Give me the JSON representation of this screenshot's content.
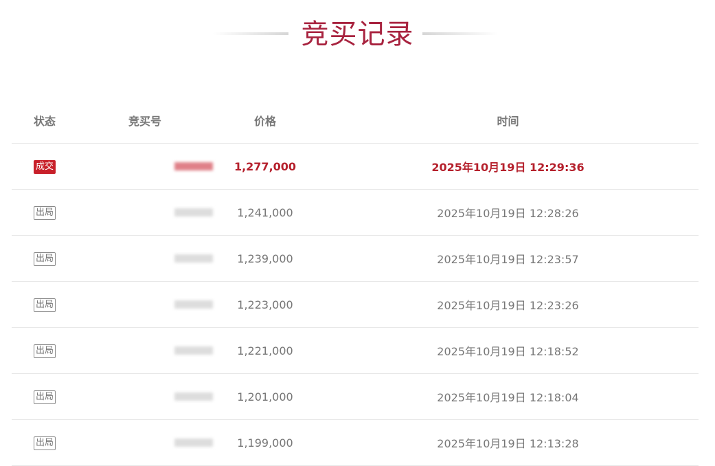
{
  "title": "竞买记录",
  "columns": [
    "状态",
    "竞买号",
    "价格",
    "时间"
  ],
  "rows": [
    {
      "status": "成交",
      "bidder": "",
      "price": "1,277,000",
      "time": "2025年10月19日 12:29:36",
      "winner": true
    },
    {
      "status": "出局",
      "bidder": "",
      "price": "1,241,000",
      "time": "2025年10月19日 12:28:26"
    },
    {
      "status": "出局",
      "bidder": "",
      "price": "1,239,000",
      "time": "2025年10月19日 12:23:57"
    },
    {
      "status": "出局",
      "bidder": "",
      "price": "1,223,000",
      "time": "2025年10月19日 12:23:26"
    },
    {
      "status": "出局",
      "bidder": "",
      "price": "1,221,000",
      "time": "2025年10月19日 12:18:52"
    },
    {
      "status": "出局",
      "bidder": "",
      "price": "1,201,000",
      "time": "2025年10月19日 12:18:04"
    },
    {
      "status": "出局",
      "bidder": "",
      "price": "1,199,000",
      "time": "2025年10月19日 12:13:28"
    }
  ],
  "colors": {
    "accent": "#a8233f",
    "winner": "#c8202a"
  }
}
